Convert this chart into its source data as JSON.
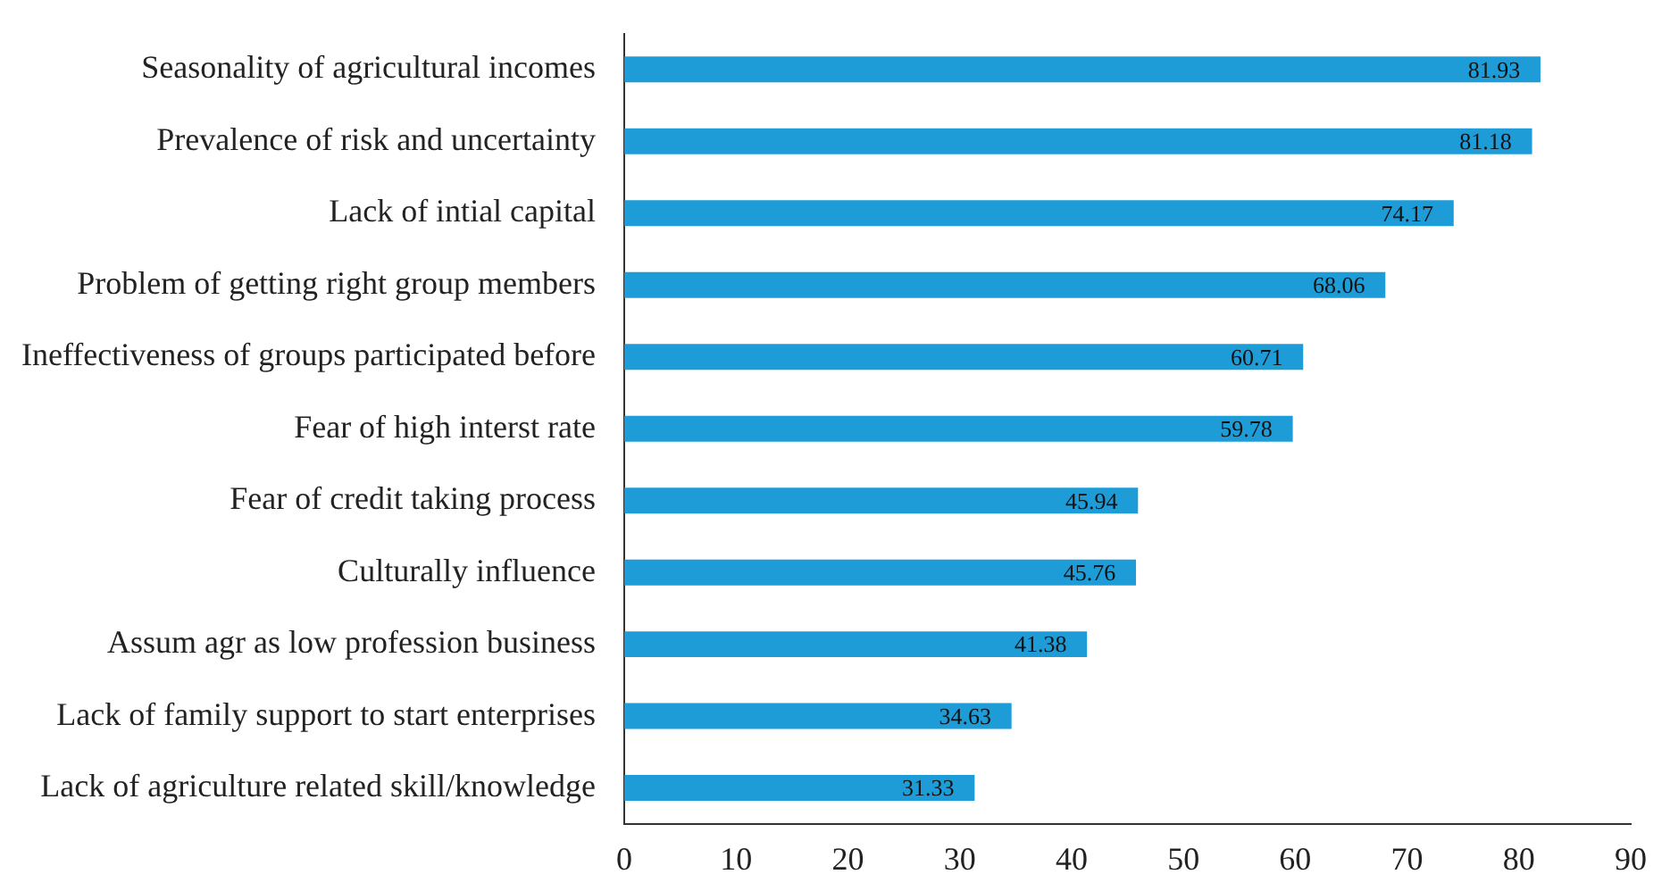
{
  "chart_data": {
    "type": "bar",
    "orientation": "horizontal",
    "categories": [
      "Seasonality of agricultural incomes",
      "Prevalence of risk and uncertainty",
      "Lack of intial capital",
      "Problem of getting right group members",
      "Ineffectiveness of groups participated before",
      "Fear of high interst rate",
      "Fear of credit taking process",
      "Culturally influence",
      "Assum agr as low profession business",
      "Lack of family support to start enterprises",
      "Lack of agriculture related skill/knowledge"
    ],
    "values": [
      81.93,
      81.18,
      74.17,
      68.06,
      60.71,
      59.78,
      45.94,
      45.76,
      41.38,
      34.63,
      31.33
    ],
    "color": "#1e9cd7",
    "xlim": [
      0,
      90
    ],
    "xticks": [
      0,
      10,
      20,
      30,
      40,
      50,
      60,
      70,
      80,
      90
    ],
    "data_labels": true,
    "grid": false,
    "legend": false
  }
}
